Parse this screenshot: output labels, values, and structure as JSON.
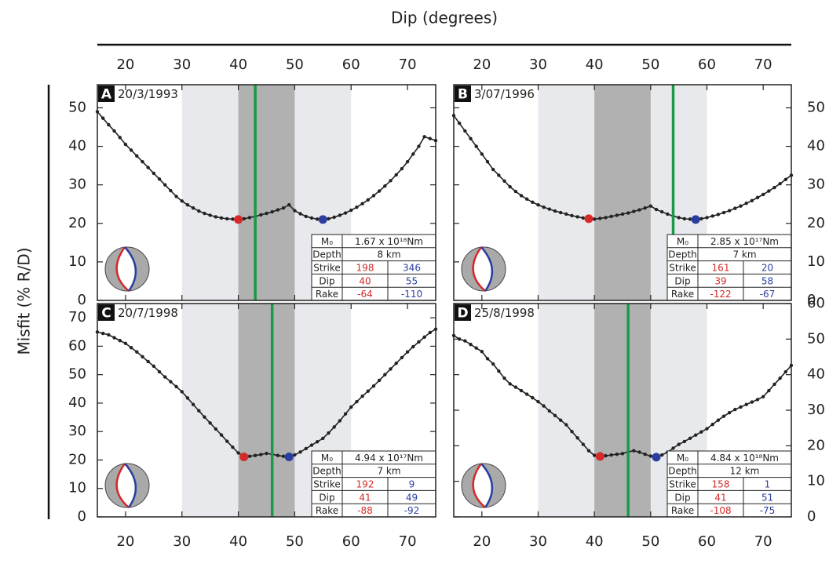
{
  "figure": {
    "xlabel": "Dip (degrees)",
    "ylabel": "Misfit (% R/D)"
  },
  "chart_data": [
    {
      "type": "line",
      "panel_label": "A",
      "title": "20/3/1993",
      "x": [
        15,
        16,
        17,
        18,
        19,
        20,
        21,
        22,
        23,
        24,
        25,
        26,
        27,
        28,
        29,
        30,
        31,
        32,
        33,
        34,
        35,
        36,
        37,
        38,
        39,
        40,
        41,
        42,
        43,
        44,
        45,
        46,
        47,
        48,
        49,
        50,
        51,
        52,
        53,
        54,
        55,
        56,
        57,
        58,
        59,
        60,
        61,
        62,
        63,
        64,
        65,
        66,
        67,
        68,
        69,
        70,
        71,
        72,
        73,
        74,
        75
      ],
      "values": [
        49,
        47.3,
        45.6,
        44,
        42.3,
        40.5,
        39,
        37.5,
        36,
        34.5,
        33,
        31.5,
        30,
        28.5,
        27,
        25.8,
        24.8,
        24,
        23.2,
        22.6,
        22.1,
        21.7,
        21.4,
        21.2,
        21.1,
        21,
        21.2,
        21.5,
        21.8,
        22.2,
        22.6,
        23,
        23.5,
        24,
        24.8,
        23.3,
        22.5,
        21.8,
        21.4,
        21.1,
        21,
        21.2,
        21.6,
        22.1,
        22.7,
        23.4,
        24.2,
        25.1,
        26.1,
        27.2,
        28.4,
        29.7,
        31.1,
        32.6,
        34.2,
        36,
        38,
        40,
        42.5,
        42,
        41.5
      ],
      "color": "#222222",
      "xlim": [
        15,
        75
      ],
      "xticks": [
        20,
        30,
        40,
        50,
        60,
        70
      ],
      "x_axis_side": "top",
      "ylim": [
        0,
        56
      ],
      "yticks": [
        0,
        10,
        20,
        30,
        40,
        50
      ],
      "y_axis_side": "left",
      "bands": [
        {
          "range": [
            30,
            60
          ],
          "color": "#e8e9ec"
        },
        {
          "range": [
            40,
            50
          ],
          "color": "#b1b1b1"
        }
      ],
      "reference_line": {
        "x": 43,
        "color": "#1a9a48"
      },
      "markers": [
        {
          "x": 40,
          "y": 21,
          "color": "#d42a2a"
        },
        {
          "x": 55,
          "y": 21,
          "color": "#2b3ea0"
        }
      ],
      "table": {
        "colors": [
          "#d42a2a",
          "#2b3ea0"
        ],
        "rows": [
          [
            "M₀",
            "1.67 x 10¹⁸Nm"
          ],
          [
            "Depth",
            "8 km"
          ],
          [
            "Strike",
            198,
            346
          ],
          [
            "Dip",
            40,
            55
          ],
          [
            "Rake",
            -64,
            -110
          ]
        ]
      }
    },
    {
      "type": "line",
      "panel_label": "B",
      "title": "3/07/1996",
      "x": [
        15,
        16,
        17,
        18,
        19,
        20,
        21,
        22,
        23,
        24,
        25,
        26,
        27,
        28,
        29,
        30,
        31,
        32,
        33,
        34,
        35,
        36,
        37,
        38,
        39,
        40,
        41,
        42,
        43,
        44,
        45,
        46,
        47,
        48,
        49,
        50,
        51,
        52,
        53,
        54,
        55,
        56,
        57,
        58,
        59,
        60,
        61,
        62,
        63,
        64,
        65,
        66,
        67,
        68,
        69,
        70,
        71,
        72,
        73,
        74,
        75
      ],
      "values": [
        48,
        46,
        44,
        42,
        40,
        38,
        36,
        34,
        32.5,
        31,
        29.5,
        28.3,
        27.2,
        26.3,
        25.5,
        24.8,
        24.2,
        23.7,
        23.2,
        22.8,
        22.4,
        22,
        21.7,
        21.4,
        21.2,
        21.1,
        21.3,
        21.5,
        21.8,
        22.1,
        22.4,
        22.7,
        23.1,
        23.5,
        24,
        24.5,
        23.6,
        23,
        22.4,
        21.9,
        21.5,
        21.2,
        21.1,
        21,
        21.2,
        21.5,
        21.9,
        22.3,
        22.8,
        23.3,
        23.9,
        24.5,
        25.2,
        25.9,
        26.7,
        27.5,
        28.4,
        29.3,
        30.3,
        31.4,
        32.5
      ],
      "color": "#222222",
      "xlim": [
        15,
        75
      ],
      "xticks": [
        20,
        30,
        40,
        50,
        60,
        70
      ],
      "x_axis_side": "top",
      "ylim": [
        0,
        56
      ],
      "yticks": [
        0,
        10,
        20,
        30,
        40,
        50
      ],
      "y_axis_side": "right",
      "bands": [
        {
          "range": [
            30,
            60
          ],
          "color": "#e8e9ec"
        },
        {
          "range": [
            40,
            50
          ],
          "color": "#b1b1b1"
        }
      ],
      "reference_line": {
        "x": 54,
        "color": "#1a9a48"
      },
      "markers": [
        {
          "x": 39,
          "y": 21.2,
          "color": "#d42a2a"
        },
        {
          "x": 58,
          "y": 21,
          "color": "#2b3ea0"
        }
      ],
      "table": {
        "colors": [
          "#d42a2a",
          "#2b3ea0"
        ],
        "rows": [
          [
            "M₀",
            "2.85 x 10¹⁷Nm"
          ],
          [
            "Depth",
            "7 km"
          ],
          [
            "Strike",
            161,
            20
          ],
          [
            "Dip",
            39,
            58
          ],
          [
            "Rake",
            -122,
            -67
          ]
        ]
      }
    },
    {
      "type": "line",
      "panel_label": "C",
      "title": "20/7/1998",
      "x": [
        15,
        16,
        17,
        18,
        19,
        20,
        21,
        22,
        23,
        24,
        25,
        26,
        27,
        28,
        29,
        30,
        31,
        32,
        33,
        34,
        35,
        36,
        37,
        38,
        39,
        40,
        41,
        42,
        43,
        44,
        45,
        46,
        47,
        48,
        49,
        50,
        51,
        52,
        53,
        54,
        55,
        56,
        57,
        58,
        59,
        60,
        61,
        62,
        63,
        64,
        65,
        66,
        67,
        68,
        69,
        70,
        71,
        72,
        73,
        74,
        75
      ],
      "values": [
        65,
        64.5,
        64,
        63,
        62,
        61,
        59.5,
        58,
        56.3,
        54.6,
        53,
        51,
        49.2,
        47.5,
        45.8,
        44,
        41.8,
        39.5,
        37.3,
        35.1,
        33,
        30.9,
        28.8,
        26.6,
        24.5,
        22.5,
        21.1,
        21.3,
        21.6,
        21.9,
        22.3,
        22,
        21.6,
        21.3,
        21.1,
        21.8,
        22.8,
        24,
        25.2,
        26.4,
        27.6,
        29.5,
        31.6,
        33.8,
        36.2,
        38.6,
        40.5,
        42.4,
        44.2,
        46,
        48,
        50,
        52,
        54,
        56,
        58,
        59.8,
        61.5,
        63.2,
        64.8,
        66
      ],
      "color": "#222222",
      "xlim": [
        15,
        75
      ],
      "xticks": [
        20,
        30,
        40,
        50,
        60,
        70
      ],
      "x_axis_side": "bottom",
      "ylim": [
        0,
        75
      ],
      "yticks": [
        0,
        10,
        20,
        30,
        40,
        50,
        60,
        70
      ],
      "y_axis_side": "left",
      "bands": [
        {
          "range": [
            30,
            60
          ],
          "color": "#e8e9ec"
        },
        {
          "range": [
            40,
            50
          ],
          "color": "#b1b1b1"
        }
      ],
      "reference_line": {
        "x": 46,
        "color": "#1a9a48"
      },
      "markers": [
        {
          "x": 41,
          "y": 21.1,
          "color": "#d42a2a"
        },
        {
          "x": 49,
          "y": 21.1,
          "color": "#2b3ea0"
        }
      ],
      "table": {
        "colors": [
          "#d42a2a",
          "#2b3ea0"
        ],
        "rows": [
          [
            "M₀",
            "4.94 x 10¹⁷Nm"
          ],
          [
            "Depth",
            "7 km"
          ],
          [
            "Strike",
            192,
            9
          ],
          [
            "Dip",
            41,
            49
          ],
          [
            "Rake",
            -88,
            -92
          ]
        ]
      }
    },
    {
      "type": "line",
      "panel_label": "D",
      "title": "25/8/1998",
      "x": [
        15,
        16,
        17,
        18,
        19,
        20,
        21,
        22,
        23,
        24,
        25,
        26,
        27,
        28,
        29,
        30,
        31,
        32,
        33,
        34,
        35,
        36,
        37,
        38,
        39,
        40,
        41,
        42,
        43,
        44,
        45,
        46,
        47,
        48,
        49,
        50,
        51,
        52,
        53,
        54,
        55,
        56,
        57,
        58,
        59,
        60,
        61,
        62,
        63,
        64,
        65,
        66,
        67,
        68,
        69,
        70,
        71,
        72,
        73,
        74,
        75
      ],
      "values": [
        51,
        50,
        49.5,
        48.5,
        47.5,
        46.5,
        44.5,
        43,
        41,
        39,
        37.4,
        36.5,
        35.5,
        34.5,
        33.5,
        32.4,
        31.2,
        29.8,
        28.5,
        27.2,
        25.9,
        24,
        22.2,
        20.4,
        18.6,
        17.3,
        17,
        17.2,
        17.4,
        17.6,
        17.8,
        18.3,
        18.6,
        18.2,
        17.6,
        17.1,
        16.8,
        17.4,
        18.2,
        19.3,
        20.4,
        21.2,
        22.1,
        23,
        23.9,
        24.8,
        26,
        27.2,
        28.3,
        29.3,
        30.2,
        30.9,
        31.6,
        32.3,
        33,
        33.8,
        35.5,
        37.3,
        39,
        40.8,
        42.6
      ],
      "color": "#222222",
      "xlim": [
        15,
        75
      ],
      "xticks": [
        20,
        30,
        40,
        50,
        60,
        70
      ],
      "x_axis_side": "bottom",
      "ylim": [
        0,
        60
      ],
      "yticks": [
        0,
        10,
        20,
        30,
        40,
        50,
        60
      ],
      "y_axis_side": "right",
      "bands": [
        {
          "range": [
            30,
            60
          ],
          "color": "#e8e9ec"
        },
        {
          "range": [
            40,
            50
          ],
          "color": "#b1b1b1"
        }
      ],
      "reference_line": {
        "x": 46,
        "color": "#1a9a48"
      },
      "markers": [
        {
          "x": 41,
          "y": 17,
          "color": "#d42a2a"
        },
        {
          "x": 51,
          "y": 16.8,
          "color": "#2b3ea0"
        }
      ],
      "table": {
        "colors": [
          "#d42a2a",
          "#2b3ea0"
        ],
        "rows": [
          [
            "M₀",
            "4.84 x 10¹⁸Nm"
          ],
          [
            "Depth",
            "12 km"
          ],
          [
            "Strike",
            158,
            1
          ],
          [
            "Dip",
            41,
            51
          ],
          [
            "Rake",
            -108,
            -75
          ]
        ]
      }
    }
  ]
}
